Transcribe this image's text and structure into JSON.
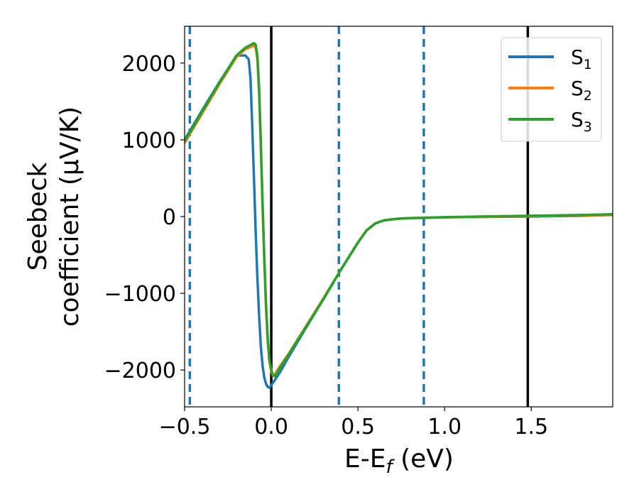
{
  "chart_data": {
    "type": "line",
    "xlabel": "E-E",
    "xlabel_sub": "f",
    "xlabel_unit": " (eV)",
    "ylabel_line1": "Seebeck",
    "ylabel_line2": "coefficient  (μV/K)",
    "xlim": [
      -0.5,
      1.97
    ],
    "ylim": [
      -2480,
      2480
    ],
    "xticks": [
      {
        "value": -0.5,
        "label": "−0.5"
      },
      {
        "value": 0.0,
        "label": "0.0"
      },
      {
        "value": 0.5,
        "label": "0.5"
      },
      {
        "value": 1.0,
        "label": "1.0"
      },
      {
        "value": 1.5,
        "label": "1.5"
      }
    ],
    "yticks": [
      {
        "value": 2000,
        "label": "2000"
      },
      {
        "value": 1000,
        "label": "1000"
      },
      {
        "value": 0,
        "label": "0"
      },
      {
        "value": -1000,
        "label": "−1000"
      },
      {
        "value": -2000,
        "label": "−2000"
      }
    ],
    "vlines_solid": [
      0.0,
      1.48
    ],
    "vlines_dashed": [
      -0.47,
      0.39,
      0.88
    ],
    "legend_position": "top-right",
    "series": [
      {
        "name": "S",
        "sub": "1",
        "color": "#1f77b4",
        "x": [
          -0.5,
          -0.4,
          -0.3,
          -0.2,
          -0.15,
          -0.13,
          -0.12,
          -0.11,
          -0.1,
          -0.09,
          -0.08,
          -0.07,
          -0.06,
          -0.05,
          -0.04,
          -0.03,
          -0.02,
          -0.01,
          0.0,
          0.05,
          0.1,
          0.2,
          0.3,
          0.4,
          0.5,
          0.55,
          0.6,
          0.65,
          0.7,
          0.75,
          0.8,
          0.9,
          1.0,
          1.2,
          1.5,
          1.8,
          1.97
        ],
        "y": [
          1000,
          1380,
          1750,
          2100,
          2100,
          2050,
          1800,
          1200,
          500,
          -200,
          -800,
          -1300,
          -1700,
          -1950,
          -2100,
          -2180,
          -2220,
          -2230,
          -2200,
          -2030,
          -1830,
          -1450,
          -1080,
          -700,
          -340,
          -180,
          -90,
          -50,
          -35,
          -25,
          -20,
          -15,
          -10,
          -5,
          0,
          10,
          20
        ]
      },
      {
        "name": "S",
        "sub": "2",
        "color": "#ff7f0e",
        "x": [
          -0.5,
          -0.4,
          -0.3,
          -0.2,
          -0.15,
          -0.1,
          -0.09,
          -0.08,
          -0.07,
          -0.06,
          -0.05,
          -0.04,
          -0.03,
          -0.02,
          -0.01,
          0.0,
          0.01,
          0.02,
          0.03,
          0.05,
          0.1,
          0.2,
          0.3,
          0.4,
          0.5,
          0.55,
          0.6,
          0.65,
          0.7,
          0.75,
          0.8,
          0.9,
          1.0,
          1.2,
          1.5,
          1.8,
          1.97
        ],
        "y": [
          960,
          1340,
          1720,
          2080,
          2180,
          2230,
          2200,
          2050,
          1600,
          900,
          100,
          -600,
          -1200,
          -1650,
          -1900,
          -2020,
          -2080,
          -2060,
          -2020,
          -1950,
          -1790,
          -1430,
          -1070,
          -700,
          -340,
          -180,
          -90,
          -50,
          -35,
          -25,
          -20,
          -15,
          -10,
          -5,
          5,
          15,
          20
        ]
      },
      {
        "name": "S",
        "sub": "3",
        "color": "#2ca02c",
        "x": [
          -0.5,
          -0.4,
          -0.3,
          -0.2,
          -0.15,
          -0.1,
          -0.09,
          -0.08,
          -0.07,
          -0.06,
          -0.05,
          -0.04,
          -0.03,
          -0.02,
          -0.01,
          0.0,
          0.01,
          0.02,
          0.03,
          0.05,
          0.1,
          0.2,
          0.3,
          0.4,
          0.5,
          0.55,
          0.6,
          0.65,
          0.7,
          0.75,
          0.8,
          0.9,
          1.0,
          1.2,
          1.5,
          1.8,
          1.97
        ],
        "y": [
          980,
          1360,
          1740,
          2100,
          2200,
          2260,
          2240,
          2100,
          1650,
          950,
          150,
          -550,
          -1150,
          -1600,
          -1880,
          -2000,
          -2070,
          -2080,
          -2050,
          -1970,
          -1800,
          -1440,
          -1080,
          -700,
          -340,
          -180,
          -90,
          -50,
          -35,
          -25,
          -20,
          -15,
          -8,
          0,
          10,
          20,
          30
        ]
      }
    ]
  }
}
